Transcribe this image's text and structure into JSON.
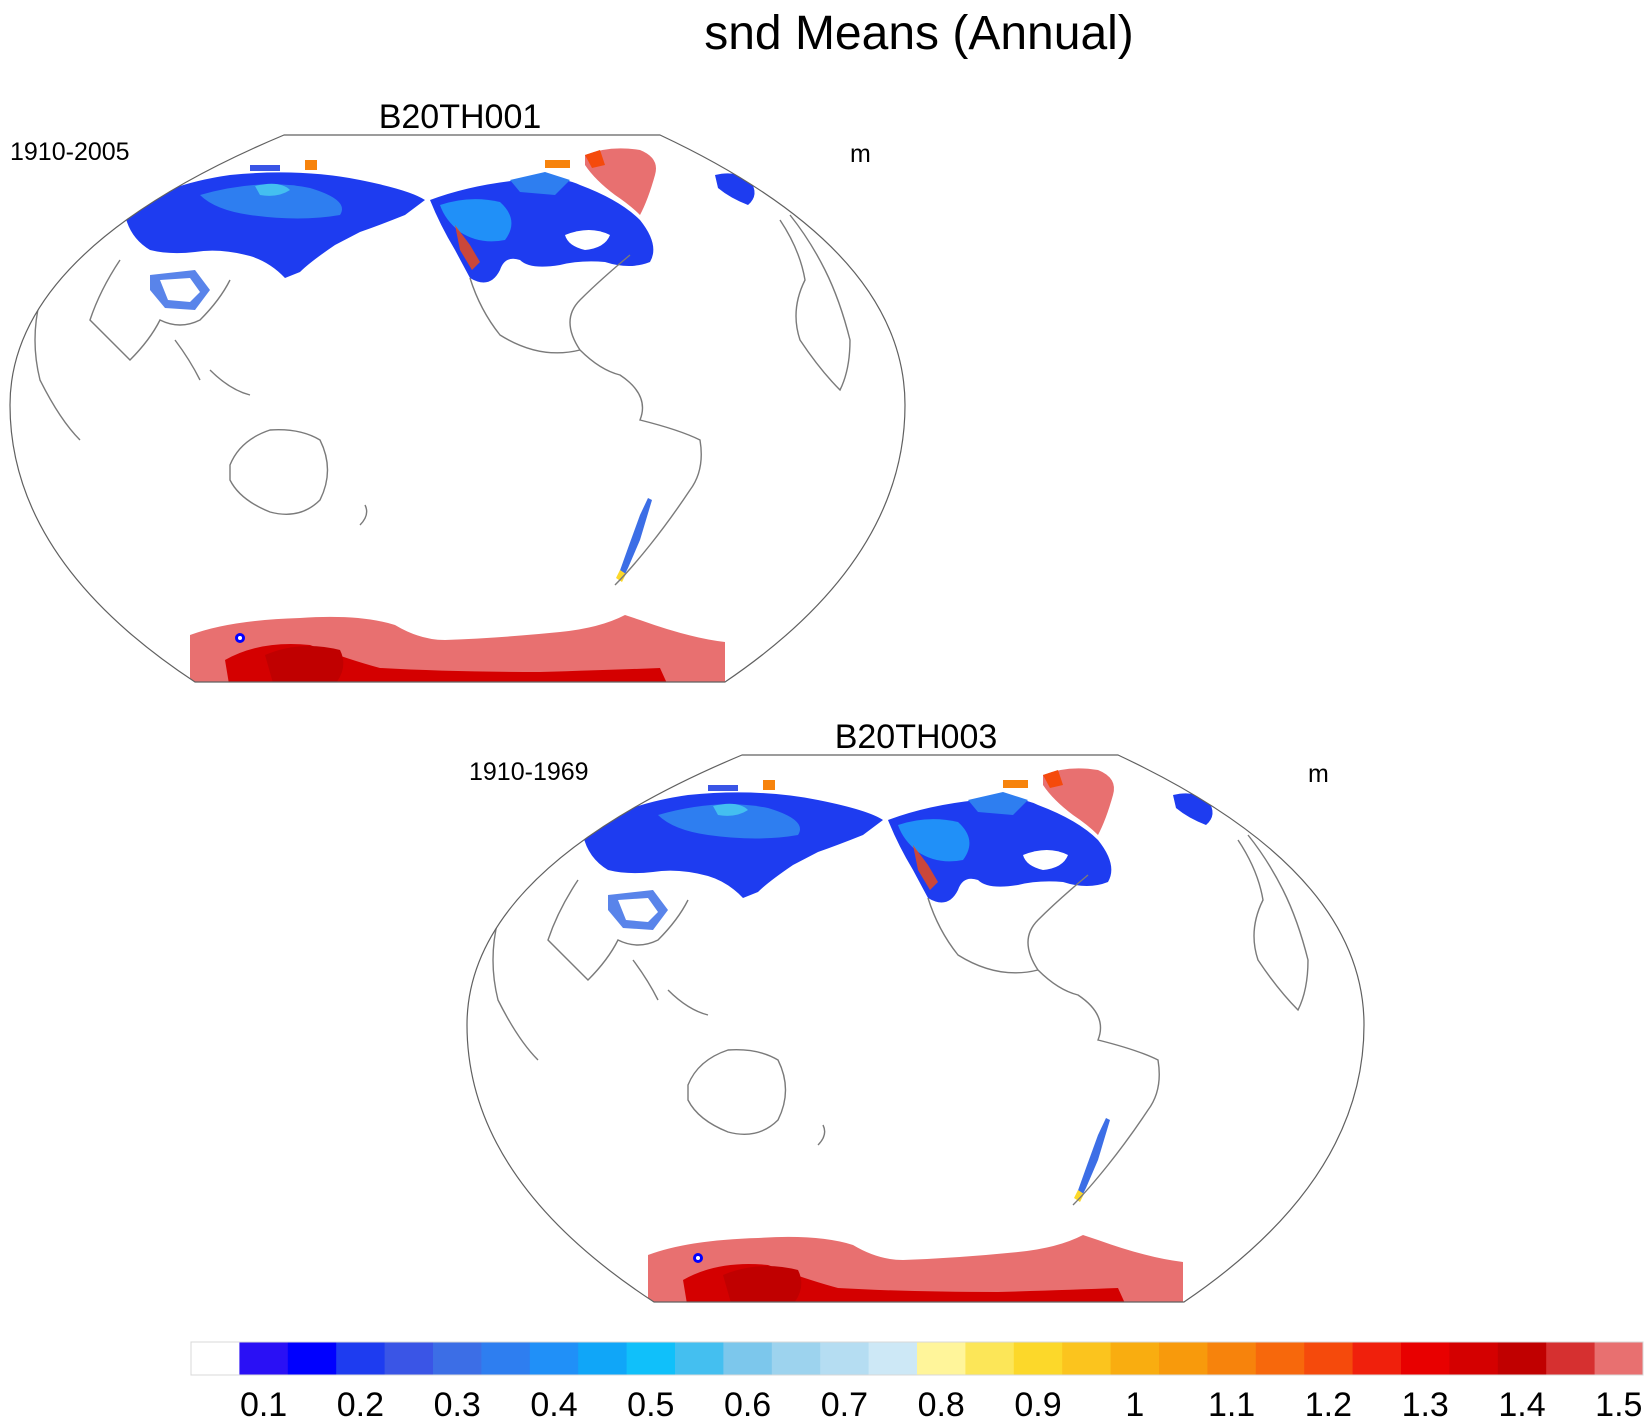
{
  "title": "snd Means (Annual)",
  "panels": [
    {
      "title": "B20TH001",
      "period": "1910-2005",
      "units": "m"
    },
    {
      "title": "B20TH003",
      "period": "1910-1969",
      "units": "m"
    }
  ],
  "colorbar": {
    "colors": [
      "#ffffff",
      "#2a10f5",
      "#0000ff",
      "#1e3cf0",
      "#3a55e6",
      "#3c6ee6",
      "#2e7ef0",
      "#2090f8",
      "#10a6f8",
      "#10c0fa",
      "#44bff0",
      "#7cc7ec",
      "#9dd3ee",
      "#b5ddf2",
      "#cde8f6",
      "#fff59a",
      "#fce658",
      "#fcd82a",
      "#fbc41e",
      "#f9ad10",
      "#f89a0c",
      "#f7830c",
      "#f7680c",
      "#f54a0c",
      "#f0200c",
      "#e80000",
      "#d40000",
      "#c00000",
      "#d63030",
      "#e87070"
    ],
    "labels": [
      "0.1",
      "0.2",
      "0.3",
      "0.4",
      "0.5",
      "0.6",
      "0.7",
      "0.8",
      "0.9",
      "1",
      "1.1",
      "1.2",
      "1.3",
      "1.4",
      "1.5"
    ]
  }
}
